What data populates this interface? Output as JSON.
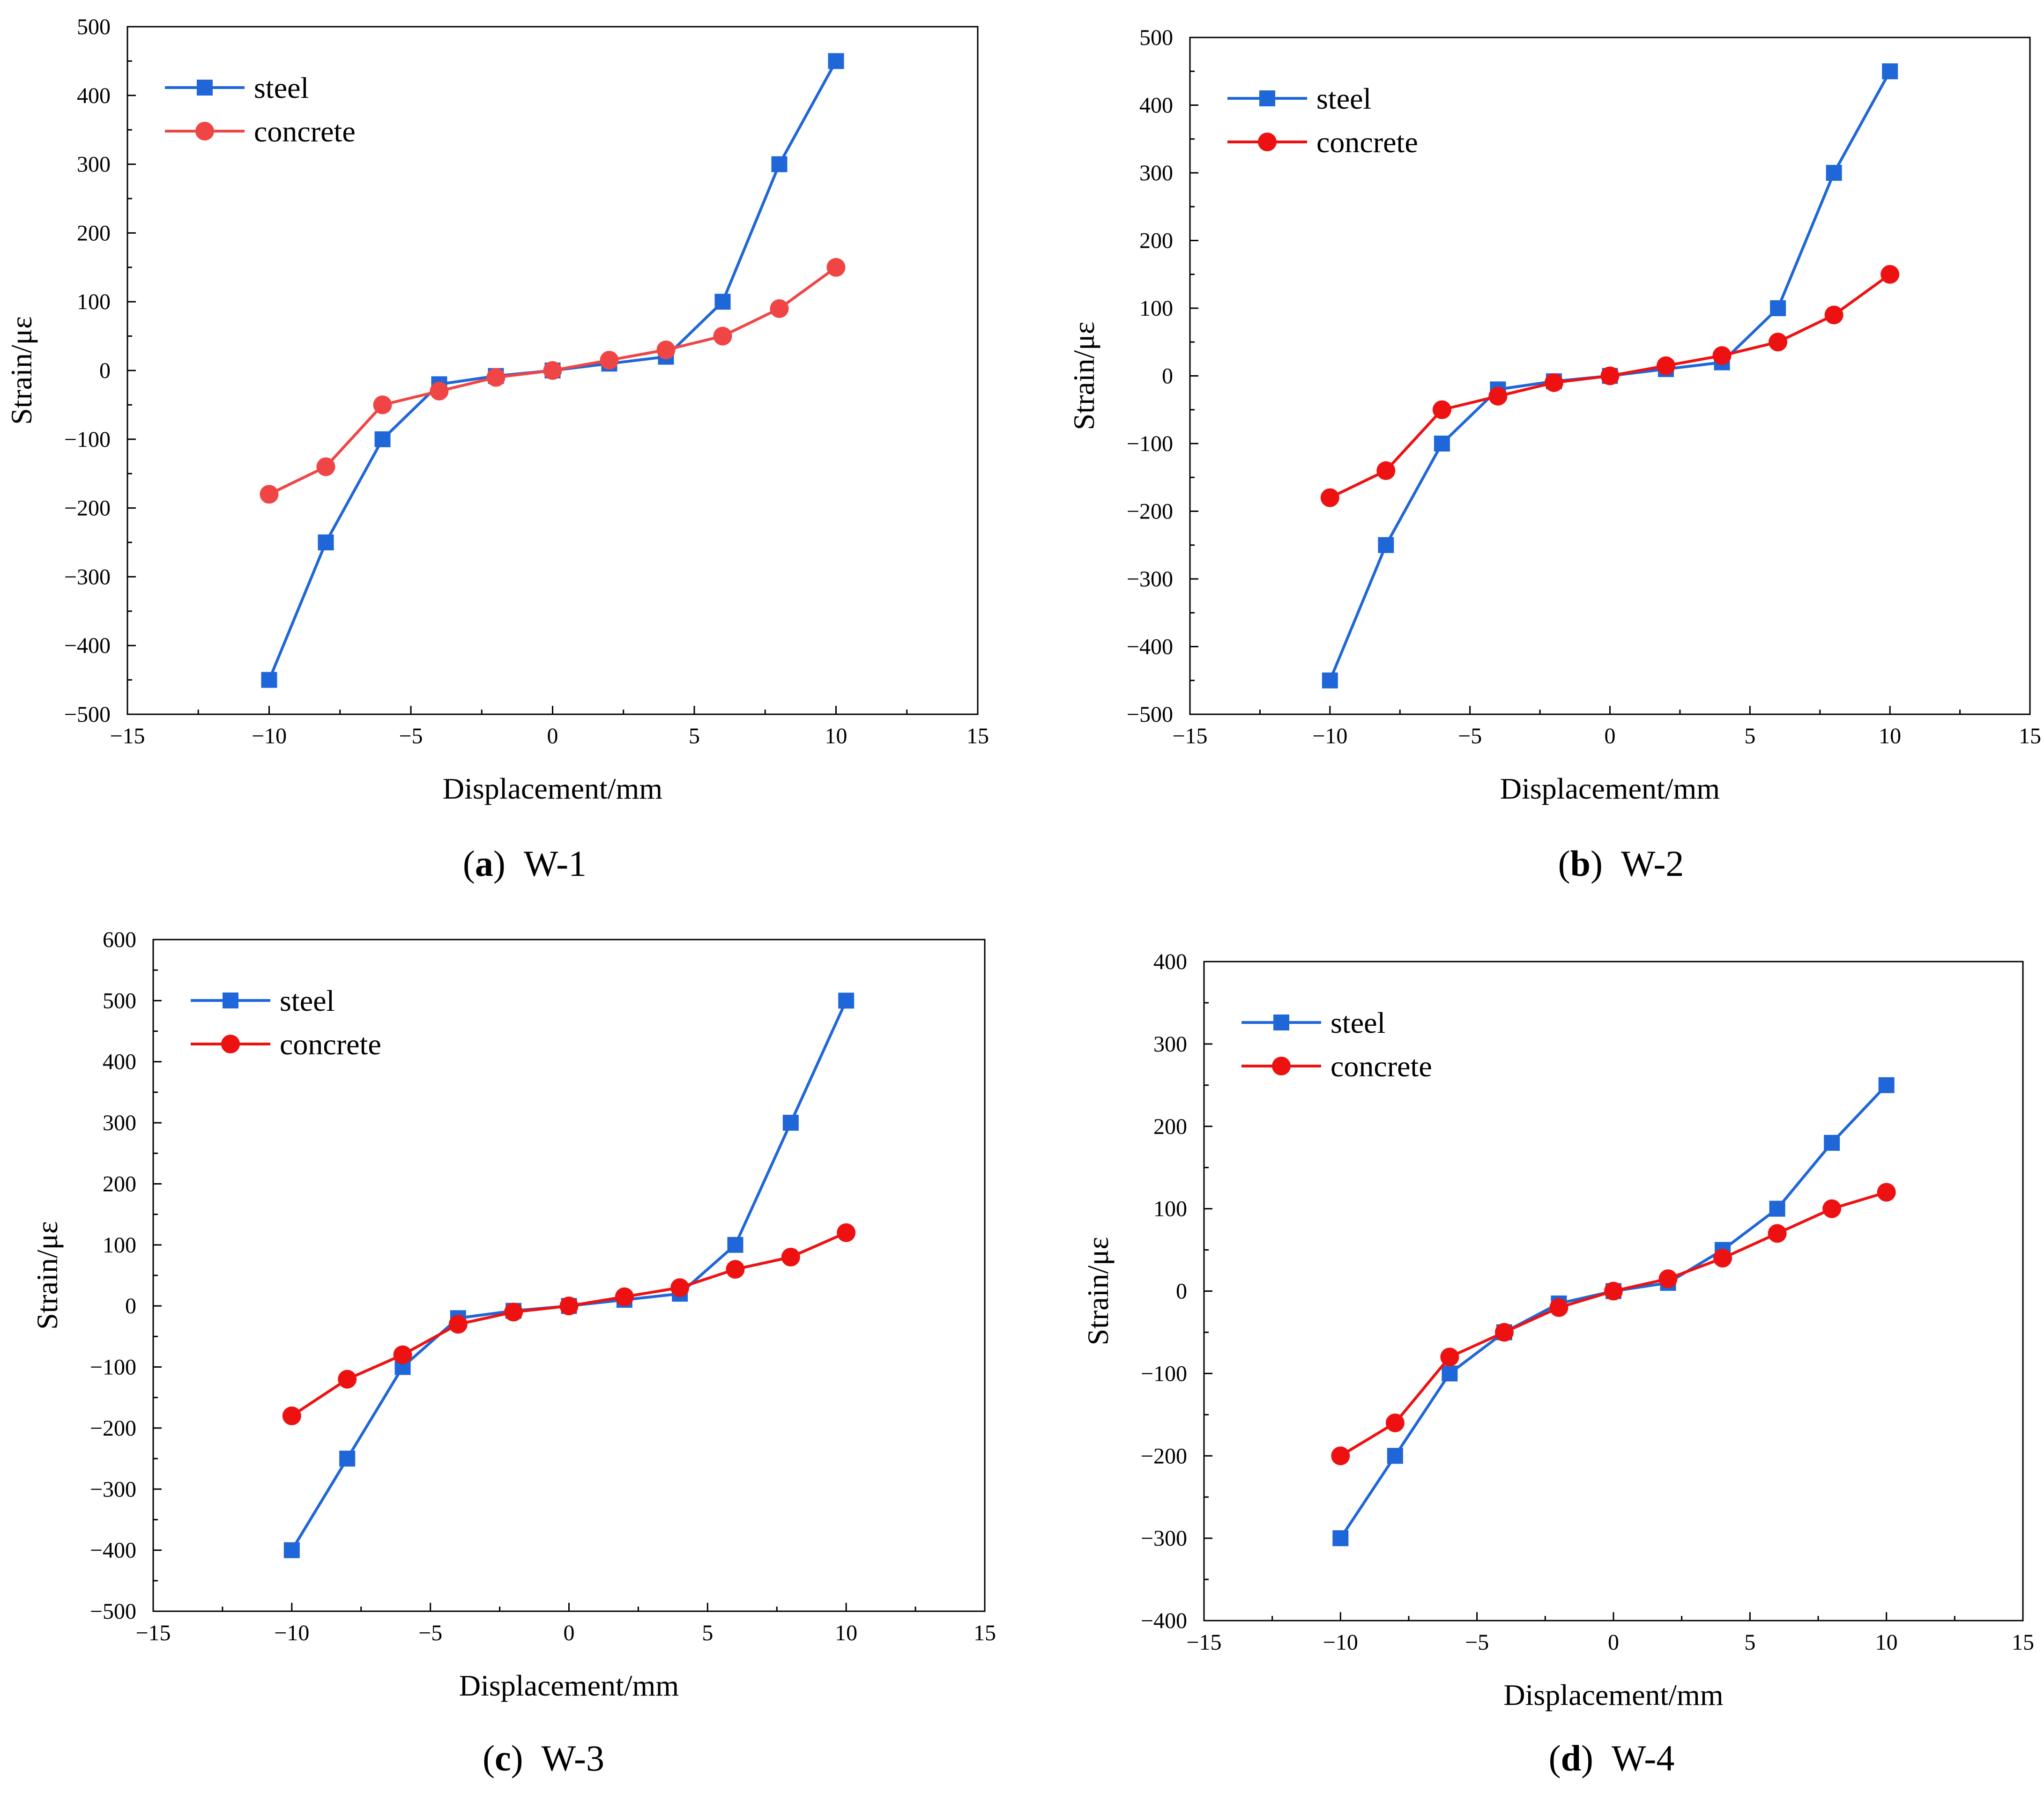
{
  "chart_data": [
    {
      "type": "line",
      "panel": "a",
      "caption_letter": "a",
      "caption_text": "W-1",
      "title": "",
      "xlabel": "Displacement/mm",
      "ylabel": "Strain/με",
      "xlim": [
        -15,
        15
      ],
      "ylim": [
        -500,
        500
      ],
      "xticks": [
        -15,
        -10,
        -5,
        0,
        5,
        10,
        15
      ],
      "yticks": [
        -500,
        -400,
        -300,
        -200,
        -100,
        0,
        100,
        200,
        300,
        400,
        500
      ],
      "legend": "top-left",
      "series": [
        {
          "name": "steel",
          "marker": "square",
          "color": "#1f66d9",
          "x": [
            -10,
            -8,
            -6,
            -4,
            -2,
            0,
            2,
            4,
            6,
            8,
            10
          ],
          "y": [
            -450,
            -250,
            -100,
            -20,
            -8,
            0,
            10,
            20,
            100,
            300,
            450
          ]
        },
        {
          "name": "concrete",
          "marker": "circle",
          "color": "#f04545",
          "x": [
            -10,
            -8,
            -6,
            -4,
            -2,
            0,
            2,
            4,
            6,
            8,
            10
          ],
          "y": [
            -180,
            -140,
            -50,
            -30,
            -10,
            0,
            15,
            30,
            50,
            90,
            150
          ]
        }
      ]
    },
    {
      "type": "line",
      "panel": "b",
      "caption_letter": "b",
      "caption_text": "W-2",
      "title": "",
      "xlabel": "Displacement/mm",
      "ylabel": "Strain/με",
      "xlim": [
        -15,
        15
      ],
      "ylim": [
        -500,
        500
      ],
      "xticks": [
        -15,
        -10,
        -5,
        0,
        5,
        10,
        15
      ],
      "yticks": [
        -500,
        -400,
        -300,
        -200,
        -100,
        0,
        100,
        200,
        300,
        400,
        500
      ],
      "legend": "top-left",
      "series": [
        {
          "name": "steel",
          "marker": "square",
          "color": "#1f66d9",
          "x": [
            -10,
            -8,
            -6,
            -4,
            -2,
            0,
            2,
            4,
            6,
            8,
            10
          ],
          "y": [
            -450,
            -250,
            -100,
            -20,
            -8,
            0,
            10,
            20,
            100,
            300,
            450
          ]
        },
        {
          "name": "concrete",
          "marker": "circle",
          "color": "#ee1111",
          "x": [
            -10,
            -8,
            -6,
            -4,
            -2,
            0,
            2,
            4,
            6,
            8,
            10
          ],
          "y": [
            -180,
            -140,
            -50,
            -30,
            -10,
            0,
            15,
            30,
            50,
            90,
            150
          ]
        }
      ]
    },
    {
      "type": "line",
      "panel": "c",
      "caption_letter": "c",
      "caption_text": "W-3",
      "title": "",
      "xlabel": "Displacement/mm",
      "ylabel": "Strain/με",
      "xlim": [
        -15,
        15
      ],
      "ylim": [
        -500,
        600
      ],
      "xticks": [
        -15,
        -10,
        -5,
        0,
        5,
        10,
        15
      ],
      "yticks": [
        -500,
        -400,
        -300,
        -200,
        -100,
        0,
        100,
        200,
        300,
        400,
        500,
        600
      ],
      "legend": "top-left",
      "series": [
        {
          "name": "steel",
          "marker": "square",
          "color": "#1f66d9",
          "x": [
            -10,
            -8,
            -6,
            -4,
            -2,
            0,
            2,
            4,
            6,
            8,
            10
          ],
          "y": [
            -400,
            -250,
            -100,
            -20,
            -8,
            0,
            10,
            20,
            100,
            300,
            500
          ]
        },
        {
          "name": "concrete",
          "marker": "circle",
          "color": "#ee1111",
          "x": [
            -10,
            -8,
            -6,
            -4,
            -2,
            0,
            2,
            4,
            6,
            8,
            10
          ],
          "y": [
            -180,
            -120,
            -80,
            -30,
            -10,
            0,
            15,
            30,
            60,
            80,
            120
          ]
        }
      ]
    },
    {
      "type": "line",
      "panel": "d",
      "caption_letter": "d",
      "caption_text": "W-4",
      "title": "",
      "xlabel": "Displacement/mm",
      "ylabel": "Strain/με",
      "xlim": [
        -15,
        15
      ],
      "ylim": [
        -400,
        400
      ],
      "xticks": [
        -15,
        -10,
        -5,
        0,
        5,
        10,
        15
      ],
      "yticks": [
        -400,
        -300,
        -200,
        -100,
        0,
        100,
        200,
        300,
        400
      ],
      "legend": "top-left",
      "series": [
        {
          "name": "steel",
          "marker": "square",
          "color": "#1f66d9",
          "x": [
            -10,
            -8,
            -6,
            -4,
            -2,
            0,
            2,
            4,
            6,
            8,
            10
          ],
          "y": [
            -300,
            -200,
            -100,
            -50,
            -15,
            0,
            10,
            50,
            100,
            180,
            250
          ]
        },
        {
          "name": "concrete",
          "marker": "circle",
          "color": "#ee1111",
          "x": [
            -10,
            -8,
            -6,
            -4,
            -2,
            0,
            2,
            4,
            6,
            8,
            10
          ],
          "y": [
            -200,
            -160,
            -80,
            -50,
            -20,
            0,
            15,
            40,
            70,
            100,
            120
          ]
        }
      ]
    }
  ]
}
